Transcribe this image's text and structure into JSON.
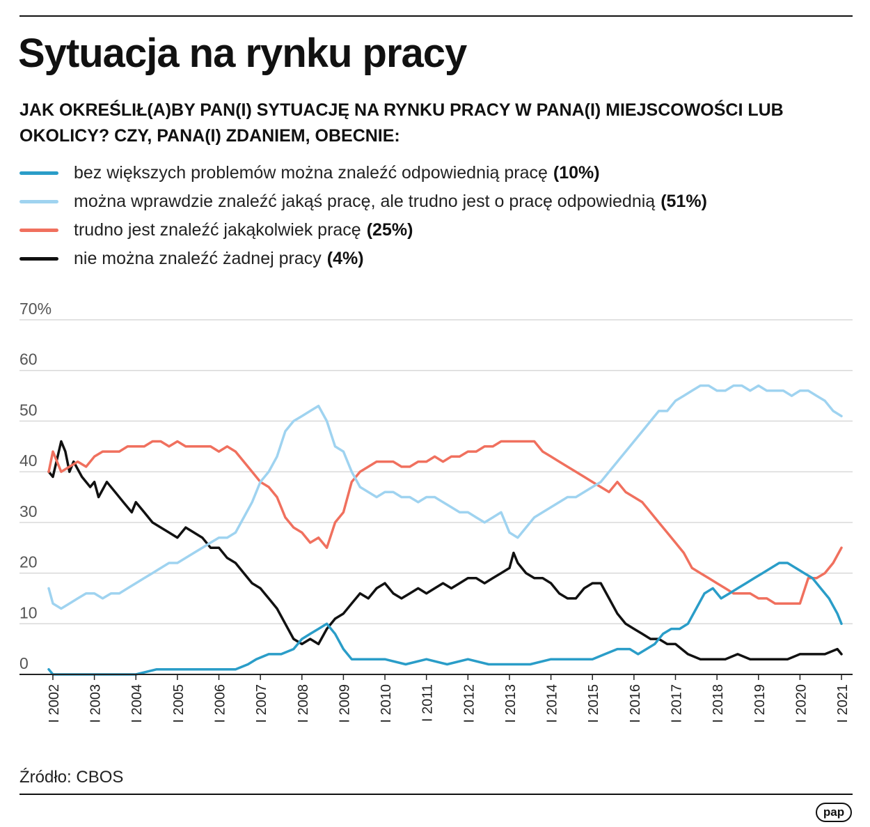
{
  "title": "Sytuacja na rynku pracy",
  "question": "JAK OKREŚLIŁ(A)BY PAN(I) SYTUACJĘ NA RYNKU PRACY W PANA(I) MIEJSCOWOŚCI LUB OKOLICY? CZY, PANA(I) ZDANIEM, OBECNIE:",
  "legend": [
    {
      "label": "bez większych problemów można znaleźć odpowiednią pracę",
      "pct": "(10%)",
      "color": "#2a9dc8"
    },
    {
      "label": "można wprawdzie znaleźć jakąś pracę, ale trudno jest o pracę odpowiednią",
      "pct": "(51%)",
      "color": "#9fd3f0"
    },
    {
      "label": "trudno jest znaleźć jakąkolwiek pracę",
      "pct": "(25%)",
      "color": "#f0705e"
    },
    {
      "label": "nie można znaleźć żadnej pracy",
      "pct": "(4%)",
      "color": "#111111"
    }
  ],
  "source": "Źródło: CBOS",
  "logo_text": "pap",
  "chart_data": {
    "type": "line",
    "title": "Sytuacja na rynku pracy",
    "xlabel": "",
    "ylabel": "",
    "ylim": [
      0,
      70
    ],
    "yticks": [
      0,
      10,
      20,
      30,
      40,
      50,
      60,
      70
    ],
    "ytick_labels": [
      "0",
      "10",
      "20",
      "30",
      "40",
      "50",
      "60",
      "70%"
    ],
    "xlim": [
      2001.9,
      2021.1
    ],
    "xticks": [
      2002,
      2003,
      2004,
      2005,
      2006,
      2007,
      2008,
      2009,
      2010,
      2011,
      2012,
      2013,
      2014,
      2015,
      2016,
      2017,
      2018,
      2019,
      2020,
      2021
    ],
    "xtick_labels": [
      "I 2002",
      "I 2003",
      "I 2004",
      "I 2005",
      "I 2006",
      "I 2007",
      "I 2008",
      "I 2009",
      "I 2010",
      "I 2011",
      "I 2012",
      "I 2013",
      "I 2014",
      "I 2015",
      "I 2016",
      "I 2017",
      "I 2018",
      "I 2019",
      "I 2020",
      "I 2021"
    ],
    "grid": true,
    "series": [
      {
        "name": "nie można znaleźć żadnej pracy",
        "color": "#111111",
        "x": [
          2001.9,
          2002.0,
          2002.2,
          2002.3,
          2002.4,
          2002.5,
          2002.7,
          2002.9,
          2003.0,
          2003.1,
          2003.3,
          2003.5,
          2003.7,
          2003.9,
          2004.0,
          2004.2,
          2004.4,
          2004.6,
          2004.8,
          2005.0,
          2005.2,
          2005.4,
          2005.6,
          2005.8,
          2006.0,
          2006.2,
          2006.4,
          2006.6,
          2006.8,
          2007.0,
          2007.2,
          2007.4,
          2007.6,
          2007.8,
          2008.0,
          2008.2,
          2008.4,
          2008.6,
          2008.8,
          2009.0,
          2009.2,
          2009.4,
          2009.6,
          2009.8,
          2010.0,
          2010.2,
          2010.4,
          2010.6,
          2010.8,
          2011.0,
          2011.2,
          2011.4,
          2011.6,
          2011.8,
          2012.0,
          2012.2,
          2012.4,
          2012.6,
          2012.8,
          2013.0,
          2013.1,
          2013.2,
          2013.4,
          2013.6,
          2013.8,
          2014.0,
          2014.2,
          2014.4,
          2014.6,
          2014.8,
          2015.0,
          2015.2,
          2015.4,
          2015.6,
          2015.8,
          2016.0,
          2016.2,
          2016.4,
          2016.6,
          2016.8,
          2017.0,
          2017.3,
          2017.6,
          2017.9,
          2018.2,
          2018.5,
          2018.8,
          2019.1,
          2019.4,
          2019.7,
          2020.0,
          2020.3,
          2020.6,
          2020.9,
          2021.0
        ],
        "values": [
          40,
          39,
          46,
          44,
          40,
          42,
          39,
          37,
          38,
          35,
          38,
          36,
          34,
          32,
          34,
          32,
          30,
          29,
          28,
          27,
          29,
          28,
          27,
          25,
          25,
          23,
          22,
          20,
          18,
          17,
          15,
          13,
          10,
          7,
          6,
          7,
          6,
          9,
          11,
          12,
          14,
          16,
          15,
          17,
          18,
          16,
          15,
          16,
          17,
          16,
          17,
          18,
          17,
          18,
          19,
          19,
          18,
          19,
          20,
          21,
          24,
          22,
          20,
          19,
          19,
          18,
          16,
          15,
          15,
          17,
          18,
          18,
          15,
          12,
          10,
          9,
          8,
          7,
          7,
          6,
          6,
          4,
          3,
          3,
          3,
          4,
          3,
          3,
          3,
          3,
          4,
          4,
          4,
          5,
          4
        ]
      },
      {
        "name": "trudno jest znaleźć jakąkolwiek pracę",
        "color": "#f0705e",
        "x": [
          2001.9,
          2002.0,
          2002.2,
          2002.4,
          2002.6,
          2002.8,
          2003.0,
          2003.2,
          2003.4,
          2003.6,
          2003.8,
          2004.0,
          2004.2,
          2004.4,
          2004.6,
          2004.8,
          2005.0,
          2005.2,
          2005.4,
          2005.6,
          2005.8,
          2006.0,
          2006.2,
          2006.4,
          2006.6,
          2006.8,
          2007.0,
          2007.2,
          2007.4,
          2007.6,
          2007.8,
          2008.0,
          2008.2,
          2008.4,
          2008.6,
          2008.8,
          2009.0,
          2009.2,
          2009.4,
          2009.6,
          2009.8,
          2010.0,
          2010.2,
          2010.4,
          2010.6,
          2010.8,
          2011.0,
          2011.2,
          2011.4,
          2011.6,
          2011.8,
          2012.0,
          2012.2,
          2012.4,
          2012.6,
          2012.8,
          2013.0,
          2013.2,
          2013.4,
          2013.6,
          2013.8,
          2014.0,
          2014.2,
          2014.4,
          2014.6,
          2014.8,
          2015.0,
          2015.2,
          2015.4,
          2015.6,
          2015.8,
          2016.0,
          2016.2,
          2016.4,
          2016.6,
          2016.8,
          2017.0,
          2017.2,
          2017.4,
          2017.6,
          2017.8,
          2018.0,
          2018.2,
          2018.4,
          2018.6,
          2018.8,
          2019.0,
          2019.2,
          2019.4,
          2019.6,
          2019.8,
          2020.0,
          2020.2,
          2020.4,
          2020.6,
          2020.8,
          2021.0
        ],
        "values": [
          40,
          44,
          40,
          41,
          42,
          41,
          43,
          44,
          44,
          44,
          45,
          45,
          45,
          46,
          46,
          45,
          46,
          45,
          45,
          45,
          45,
          44,
          45,
          44,
          42,
          40,
          38,
          37,
          35,
          31,
          29,
          28,
          26,
          27,
          25,
          30,
          32,
          38,
          40,
          41,
          42,
          42,
          42,
          41,
          41,
          42,
          42,
          43,
          42,
          43,
          43,
          44,
          44,
          45,
          45,
          46,
          46,
          46,
          46,
          46,
          44,
          43,
          42,
          41,
          40,
          39,
          38,
          37,
          36,
          38,
          36,
          35,
          34,
          32,
          30,
          28,
          26,
          24,
          21,
          20,
          19,
          18,
          17,
          16,
          16,
          16,
          15,
          15,
          14,
          14,
          14,
          14,
          19,
          19,
          20,
          22,
          25
        ]
      },
      {
        "name": "można wprawdzie znaleźć jakąś pracę, ale trudno jest o pracę odpowiednią",
        "color": "#9fd3f0",
        "x": [
          2001.9,
          2002.0,
          2002.2,
          2002.4,
          2002.6,
          2002.8,
          2003.0,
          2003.2,
          2003.4,
          2003.6,
          2003.8,
          2004.0,
          2004.2,
          2004.4,
          2004.6,
          2004.8,
          2005.0,
          2005.2,
          2005.4,
          2005.6,
          2005.8,
          2006.0,
          2006.2,
          2006.4,
          2006.6,
          2006.8,
          2007.0,
          2007.2,
          2007.4,
          2007.6,
          2007.8,
          2008.0,
          2008.2,
          2008.4,
          2008.6,
          2008.8,
          2009.0,
          2009.2,
          2009.4,
          2009.6,
          2009.8,
          2010.0,
          2010.2,
          2010.4,
          2010.6,
          2010.8,
          2011.0,
          2011.2,
          2011.4,
          2011.6,
          2011.8,
          2012.0,
          2012.2,
          2012.4,
          2012.6,
          2012.8,
          2013.0,
          2013.2,
          2013.4,
          2013.6,
          2013.8,
          2014.0,
          2014.2,
          2014.4,
          2014.6,
          2014.8,
          2015.0,
          2015.2,
          2015.4,
          2015.6,
          2015.8,
          2016.0,
          2016.2,
          2016.4,
          2016.6,
          2016.8,
          2017.0,
          2017.2,
          2017.4,
          2017.6,
          2017.8,
          2018.0,
          2018.2,
          2018.4,
          2018.6,
          2018.8,
          2019.0,
          2019.2,
          2019.4,
          2019.6,
          2019.8,
          2020.0,
          2020.2,
          2020.4,
          2020.6,
          2020.8,
          2021.0
        ],
        "values": [
          17,
          14,
          13,
          14,
          15,
          16,
          16,
          15,
          16,
          16,
          17,
          18,
          19,
          20,
          21,
          22,
          22,
          23,
          24,
          25,
          26,
          27,
          27,
          28,
          31,
          34,
          38,
          40,
          43,
          48,
          50,
          51,
          52,
          53,
          50,
          45,
          44,
          40,
          37,
          36,
          35,
          36,
          36,
          35,
          35,
          34,
          35,
          35,
          34,
          33,
          32,
          32,
          31,
          30,
          31,
          32,
          28,
          27,
          29,
          31,
          32,
          33,
          34,
          35,
          35,
          36,
          37,
          38,
          40,
          42,
          44,
          46,
          48,
          50,
          52,
          52,
          54,
          55,
          56,
          57,
          57,
          56,
          56,
          57,
          57,
          56,
          57,
          56,
          56,
          56,
          55,
          56,
          56,
          55,
          54,
          52,
          51
        ]
      },
      {
        "name": "bez większych problemów można znaleźć odpowiednią pracę",
        "color": "#2a9dc8",
        "x": [
          2001.9,
          2002.0,
          2002.5,
          2003.0,
          2003.5,
          2004.0,
          2004.5,
          2005.0,
          2005.5,
          2006.0,
          2006.4,
          2006.7,
          2006.9,
          2007.2,
          2007.5,
          2007.8,
          2008.0,
          2008.2,
          2008.4,
          2008.6,
          2008.8,
          2009.0,
          2009.2,
          2009.5,
          2010.0,
          2010.5,
          2011.0,
          2011.5,
          2012.0,
          2012.5,
          2013.0,
          2013.5,
          2014.0,
          2014.5,
          2015.0,
          2015.3,
          2015.6,
          2015.9,
          2016.1,
          2016.3,
          2016.5,
          2016.7,
          2016.9,
          2017.1,
          2017.3,
          2017.5,
          2017.7,
          2017.9,
          2018.1,
          2018.3,
          2018.5,
          2018.7,
          2018.9,
          2019.1,
          2019.3,
          2019.5,
          2019.7,
          2019.9,
          2020.1,
          2020.3,
          2020.5,
          2020.7,
          2020.9,
          2021.0
        ],
        "values": [
          1,
          0,
          0,
          0,
          0,
          0,
          1,
          1,
          1,
          1,
          1,
          2,
          3,
          4,
          4,
          5,
          7,
          8,
          9,
          10,
          8,
          5,
          3,
          3,
          3,
          2,
          3,
          2,
          3,
          2,
          2,
          2,
          3,
          3,
          3,
          4,
          5,
          5,
          4,
          5,
          6,
          8,
          9,
          9,
          10,
          13,
          16,
          17,
          15,
          16,
          17,
          18,
          19,
          20,
          21,
          22,
          22,
          21,
          20,
          19,
          17,
          15,
          12,
          10
        ]
      }
    ]
  }
}
